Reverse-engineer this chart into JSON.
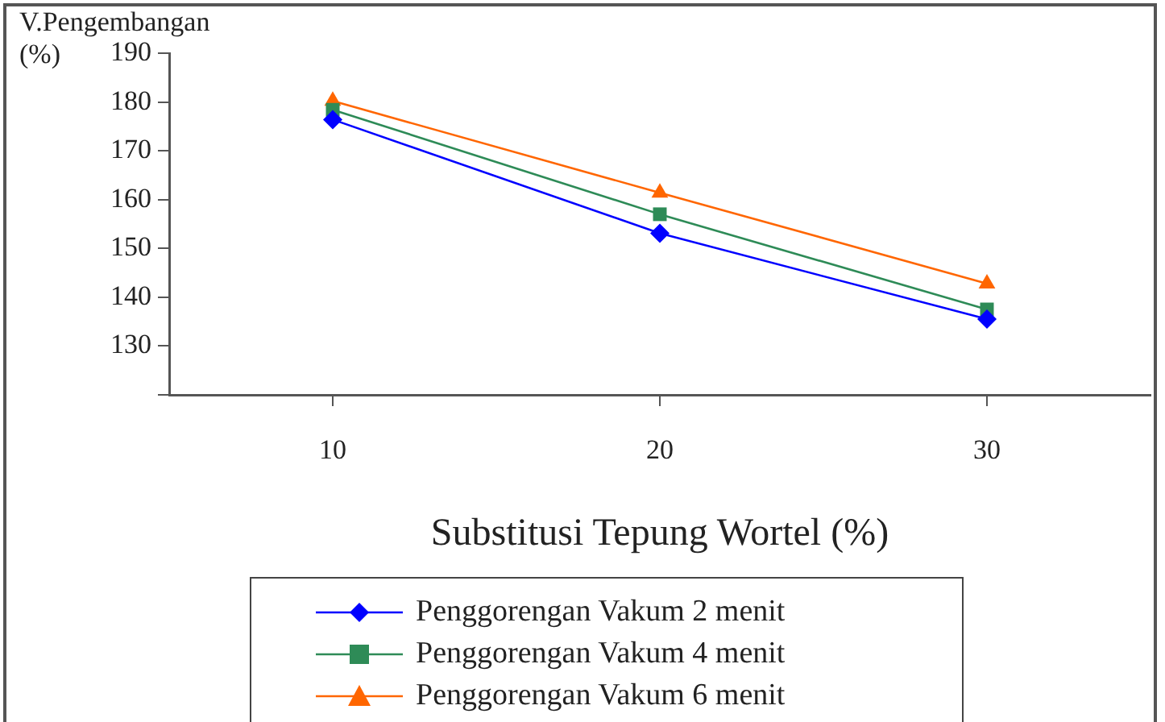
{
  "chart_data": {
    "type": "line",
    "xlabel": "Substitusi Tepung Wortel (%)",
    "ylabel": "V.Pengembangan (%)",
    "x": [
      10,
      20,
      30
    ],
    "series": [
      {
        "name": "Penggorengan Vakum 2 menit",
        "color": "#0000ff",
        "marker": "diamond",
        "values": [
          176.4,
          153.1,
          135.5
        ]
      },
      {
        "name": "Penggorengan Vakum 4 menit",
        "color": "#2e8b57",
        "marker": "square",
        "values": [
          178.4,
          157,
          137.5
        ]
      },
      {
        "name": "Penggorengan Vakum 6 menit",
        "color": "#ff6600",
        "marker": "triangle",
        "values": [
          180.2,
          161.4,
          142.8
        ]
      }
    ],
    "xlim": [
      5,
      35
    ],
    "xticks": [
      10,
      20,
      30
    ],
    "ylim": [
      120,
      190
    ],
    "yticks": [
      {
        "value": 120,
        "label": null
      },
      130,
      140,
      150,
      160,
      170,
      180,
      {
        "value": 190,
        "label": "190"
      }
    ],
    "grid": false,
    "legend": "bottom",
    "line_style": "solid"
  }
}
